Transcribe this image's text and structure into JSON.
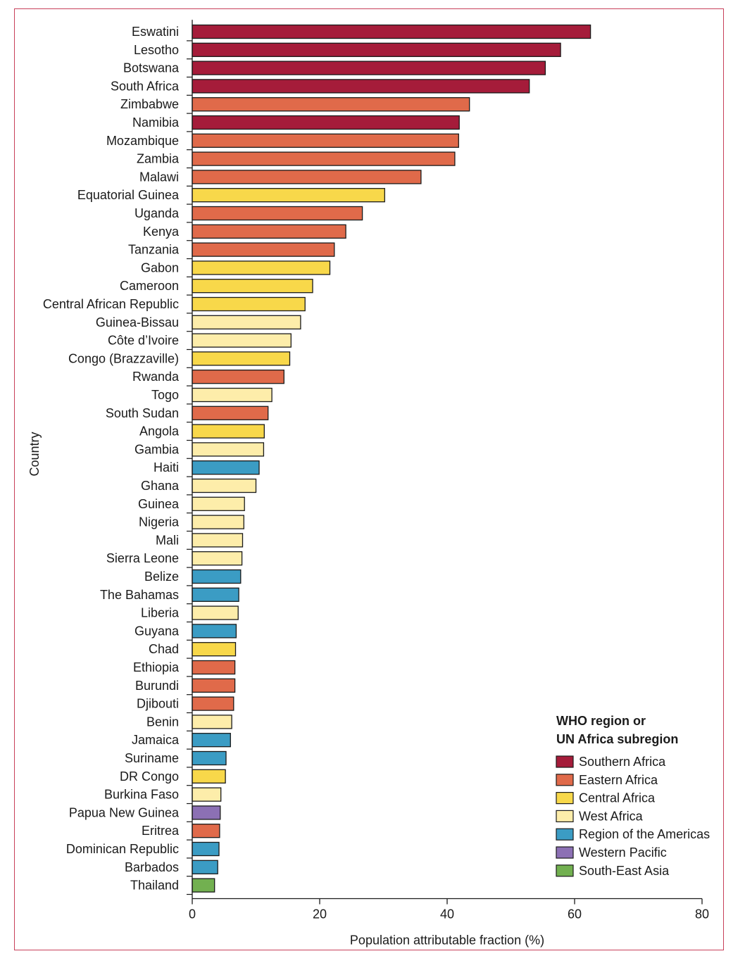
{
  "chart_data": {
    "type": "bar",
    "orientation": "horizontal",
    "title": "",
    "xlabel": "Population attributable fraction (%)",
    "ylabel": "Country",
    "xlim": [
      0,
      80
    ],
    "xticks": [
      0,
      20,
      40,
      60,
      80
    ],
    "grid": false,
    "legend_position": "bottom-right",
    "legend_title_lines": [
      "WHO region or",
      "UN Africa subregion"
    ],
    "regions": [
      {
        "key": "southern",
        "name": "Southern Africa",
        "color": "#a51c3a"
      },
      {
        "key": "eastern",
        "name": "Eastern Africa",
        "color": "#e06a4a"
      },
      {
        "key": "central",
        "name": "Central Africa",
        "color": "#f8d84a"
      },
      {
        "key": "west",
        "name": "West Africa",
        "color": "#fdedaa"
      },
      {
        "key": "americas",
        "name": "Region of the Americas",
        "color": "#3b9cc4"
      },
      {
        "key": "wpacific",
        "name": "Western Pacific",
        "color": "#8c70b4"
      },
      {
        "key": "seasia",
        "name": "South-East Asia",
        "color": "#72b050"
      }
    ],
    "bars": [
      {
        "country": "Eswatini",
        "value": 62.5,
        "region": "southern"
      },
      {
        "country": "Lesotho",
        "value": 57.8,
        "region": "southern"
      },
      {
        "country": "Botswana",
        "value": 55.4,
        "region": "southern"
      },
      {
        "country": "South Africa",
        "value": 52.9,
        "region": "southern"
      },
      {
        "country": "Zimbabwe",
        "value": 43.5,
        "region": "eastern"
      },
      {
        "country": "Namibia",
        "value": 41.9,
        "region": "southern"
      },
      {
        "country": "Mozambique",
        "value": 41.8,
        "region": "eastern"
      },
      {
        "country": "Zambia",
        "value": 41.2,
        "region": "eastern"
      },
      {
        "country": "Malawi",
        "value": 35.9,
        "region": "eastern"
      },
      {
        "country": "Equatorial Guinea",
        "value": 30.2,
        "region": "central"
      },
      {
        "country": "Uganda",
        "value": 26.7,
        "region": "eastern"
      },
      {
        "country": "Kenya",
        "value": 24.1,
        "region": "eastern"
      },
      {
        "country": "Tanzania",
        "value": 22.3,
        "region": "eastern"
      },
      {
        "country": "Gabon",
        "value": 21.6,
        "region": "central"
      },
      {
        "country": "Cameroon",
        "value": 18.9,
        "region": "central"
      },
      {
        "country": "Central African Republic",
        "value": 17.7,
        "region": "central"
      },
      {
        "country": "Guinea-Bissau",
        "value": 17.0,
        "region": "west"
      },
      {
        "country": "Côte d’Ivoire",
        "value": 15.5,
        "region": "west"
      },
      {
        "country": "Congo (Brazzaville)",
        "value": 15.3,
        "region": "central"
      },
      {
        "country": "Rwanda",
        "value": 14.4,
        "region": "eastern"
      },
      {
        "country": "Togo",
        "value": 12.5,
        "region": "west"
      },
      {
        "country": "South Sudan",
        "value": 11.9,
        "region": "eastern"
      },
      {
        "country": "Angola",
        "value": 11.3,
        "region": "central"
      },
      {
        "country": "Gambia",
        "value": 11.2,
        "region": "west"
      },
      {
        "country": "Haiti",
        "value": 10.5,
        "region": "americas"
      },
      {
        "country": "Ghana",
        "value": 10.0,
        "region": "west"
      },
      {
        "country": "Guinea",
        "value": 8.2,
        "region": "west"
      },
      {
        "country": "Nigeria",
        "value": 8.1,
        "region": "west"
      },
      {
        "country": "Mali",
        "value": 7.9,
        "region": "west"
      },
      {
        "country": "Sierra Leone",
        "value": 7.8,
        "region": "west"
      },
      {
        "country": "Belize",
        "value": 7.6,
        "region": "americas"
      },
      {
        "country": "The Bahamas",
        "value": 7.3,
        "region": "americas"
      },
      {
        "country": "Liberia",
        "value": 7.2,
        "region": "west"
      },
      {
        "country": "Guyana",
        "value": 6.9,
        "region": "americas"
      },
      {
        "country": "Chad",
        "value": 6.8,
        "region": "central"
      },
      {
        "country": "Ethiopia",
        "value": 6.7,
        "region": "eastern"
      },
      {
        "country": "Burundi",
        "value": 6.7,
        "region": "eastern"
      },
      {
        "country": "Djibouti",
        "value": 6.5,
        "region": "eastern"
      },
      {
        "country": "Benin",
        "value": 6.2,
        "region": "west"
      },
      {
        "country": "Jamaica",
        "value": 6.0,
        "region": "americas"
      },
      {
        "country": "Suriname",
        "value": 5.3,
        "region": "americas"
      },
      {
        "country": "DR Congo",
        "value": 5.2,
        "region": "central"
      },
      {
        "country": "Burkina Faso",
        "value": 4.5,
        "region": "west"
      },
      {
        "country": "Papua New Guinea",
        "value": 4.4,
        "region": "wpacific"
      },
      {
        "country": "Eritrea",
        "value": 4.3,
        "region": "eastern"
      },
      {
        "country": "Dominican Republic",
        "value": 4.2,
        "region": "americas"
      },
      {
        "country": "Barbados",
        "value": 4.0,
        "region": "americas"
      },
      {
        "country": "Thailand",
        "value": 3.5,
        "region": "seasia"
      }
    ]
  }
}
